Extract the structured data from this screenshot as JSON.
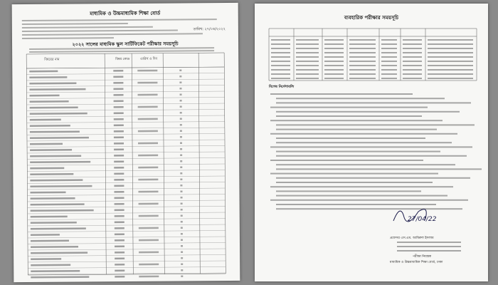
{
  "left_page": {
    "board": "মাধ্যমিক ও উচ্চমাধ্যমিক শিক্ষা বোর্ড",
    "date": "তারিখ: ২৭/০৪/২০২২",
    "heading": "২০২২ সালের মাধ্যমিক স্কুল সার্টিফিকেট পরীক্ষার সময়সূচি",
    "table": {
      "headers": [
        "বিষয়ের নাম",
        "বিষয় কোড",
        "তারিখ ও দিন"
      ]
    }
  },
  "right_page": {
    "heading": "ব্যবহারিক পরীক্ষার সময়সূচি",
    "notes_heading": "বিশেষ নির্দেশাবলি",
    "signature_date": "27/04/22",
    "signer": [
      "প্রফেসর এস.এম. আমিরুল ইসলাম",
      "পরীক্ষা নিয়ন্ত্রক",
      "মাধ্যমিক ও উচ্চমাধ্যমিক শিক্ষা বোর্ড, ঢাকা"
    ]
  }
}
